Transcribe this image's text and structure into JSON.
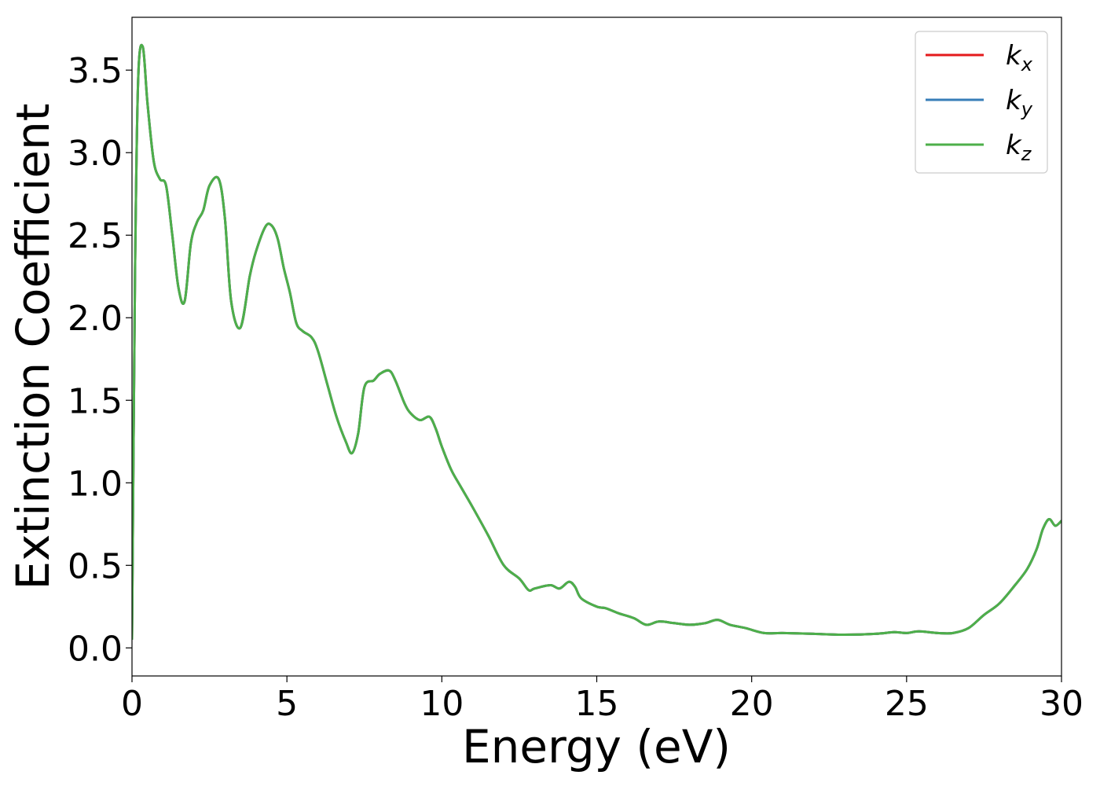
{
  "chart_data": {
    "type": "line",
    "title": "",
    "xlabel": "Energy (eV)",
    "ylabel": "Extinction Coefficient",
    "xlim": [
      0,
      30
    ],
    "ylim": [
      -0.17,
      3.82
    ],
    "xticks": [
      0,
      5,
      10,
      15,
      20,
      25,
      30
    ],
    "xtick_labels": [
      "0",
      "5",
      "10",
      "15",
      "20",
      "25",
      "30"
    ],
    "yticks": [
      0.0,
      0.5,
      1.0,
      1.5,
      2.0,
      2.5,
      3.0,
      3.5
    ],
    "ytick_labels": [
      "0.0",
      "0.5",
      "1.0",
      "1.5",
      "2.0",
      "2.5",
      "3.0",
      "3.5"
    ],
    "grid": false,
    "legend_position": "top-right",
    "series": [
      {
        "name": "k",
        "subscript": "x",
        "color": "#e41a1c"
      },
      {
        "name": "k",
        "subscript": "y",
        "color": "#377eb8"
      },
      {
        "name": "k",
        "subscript": "z",
        "color": "#4daf4a"
      }
    ],
    "x": [
      0.0,
      0.1,
      0.2,
      0.35,
      0.5,
      0.7,
      0.9,
      1.1,
      1.3,
      1.5,
      1.7,
      1.9,
      2.1,
      2.3,
      2.5,
      2.8,
      3.0,
      3.2,
      3.5,
      3.8,
      4.0,
      4.3,
      4.5,
      4.7,
      4.9,
      5.1,
      5.3,
      5.5,
      5.8,
      6.0,
      6.3,
      6.6,
      6.9,
      7.1,
      7.3,
      7.5,
      7.8,
      8.0,
      8.3,
      8.5,
      8.8,
      9.0,
      9.3,
      9.6,
      9.8,
      10.0,
      10.3,
      10.6,
      11.0,
      11.5,
      12.0,
      12.5,
      12.8,
      13.0,
      13.5,
      13.8,
      14.1,
      14.3,
      14.5,
      15.0,
      15.3,
      15.7,
      16.2,
      16.6,
      17.0,
      17.5,
      18.0,
      18.5,
      18.9,
      19.3,
      19.8,
      20.4,
      21.0,
      22.0,
      23.0,
      24.0,
      24.6,
      25.0,
      25.4,
      26.0,
      26.5,
      27.0,
      27.5,
      28.0,
      28.5,
      28.9,
      29.2,
      29.4,
      29.6,
      29.8,
      30.0
    ],
    "values": [
      0.05,
      2.3,
      3.45,
      3.64,
      3.3,
      2.95,
      2.84,
      2.8,
      2.5,
      2.18,
      2.1,
      2.45,
      2.58,
      2.65,
      2.8,
      2.84,
      2.6,
      2.1,
      1.94,
      2.25,
      2.4,
      2.55,
      2.56,
      2.48,
      2.3,
      2.15,
      1.97,
      1.92,
      1.88,
      1.8,
      1.6,
      1.4,
      1.25,
      1.18,
      1.3,
      1.58,
      1.62,
      1.66,
      1.68,
      1.62,
      1.48,
      1.42,
      1.38,
      1.4,
      1.33,
      1.22,
      1.08,
      0.98,
      0.85,
      0.68,
      0.5,
      0.42,
      0.35,
      0.36,
      0.38,
      0.36,
      0.4,
      0.37,
      0.3,
      0.25,
      0.24,
      0.21,
      0.18,
      0.14,
      0.16,
      0.15,
      0.14,
      0.15,
      0.17,
      0.14,
      0.12,
      0.09,
      0.09,
      0.085,
      0.08,
      0.085,
      0.095,
      0.09,
      0.1,
      0.09,
      0.09,
      0.12,
      0.2,
      0.27,
      0.38,
      0.48,
      0.6,
      0.72,
      0.78,
      0.74,
      0.77
    ]
  }
}
